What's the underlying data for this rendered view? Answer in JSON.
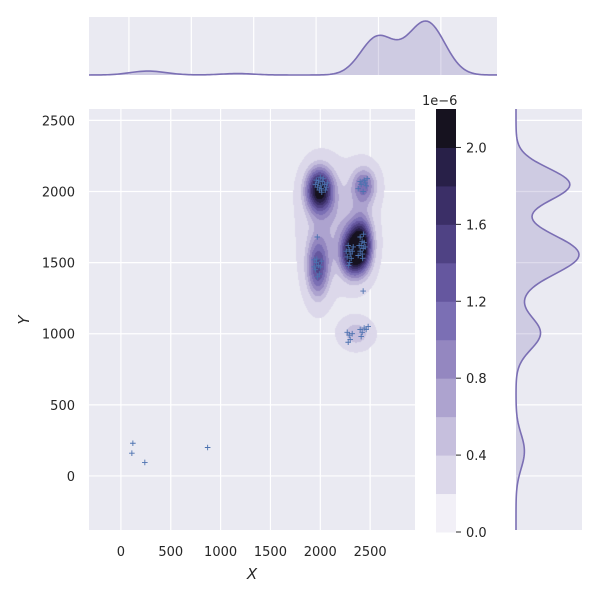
{
  "chart_data": {
    "type": "scatter",
    "title": "",
    "xlabel": "X",
    "ylabel": "Y",
    "xlim": [
      -320,
      2950
    ],
    "ylim": [
      -380,
      2580
    ],
    "x_ticks": [
      0,
      500,
      1000,
      1500,
      2000,
      2500
    ],
    "y_ticks": [
      0,
      500,
      1000,
      1500,
      2000,
      2500
    ],
    "grid": true,
    "overlay": "kde-contour-filled",
    "marker": "+",
    "colors": {
      "background": "#eaeaf2",
      "grid": "#ffffff",
      "accent": "#7b6fb4",
      "marker": "#4c72b0"
    },
    "colorbar": {
      "exponent_label": "1e−6",
      "tick_labels": [
        "0.0",
        "0.4",
        "0.8",
        "1.2",
        "1.6",
        "2.0"
      ],
      "tick_values": [
        0.0,
        0.4,
        0.8,
        1.2,
        1.6,
        2.0
      ],
      "max": 2.2,
      "levels": 11
    },
    "kde_clusters": [
      {
        "x": 1990,
        "y": 2010,
        "sx": 95,
        "sy": 110,
        "w": 1.9
      },
      {
        "x": 2410,
        "y": 1620,
        "sx": 80,
        "sy": 130,
        "w": 2.0
      },
      {
        "x": 2300,
        "y": 1560,
        "sx": 75,
        "sy": 110,
        "w": 1.3
      },
      {
        "x": 1975,
        "y": 1460,
        "sx": 80,
        "sy": 150,
        "w": 1.2
      },
      {
        "x": 2440,
        "y": 2040,
        "sx": 90,
        "sy": 95,
        "w": 0.95
      },
      {
        "x": 2360,
        "y": 1000,
        "sx": 110,
        "sy": 70,
        "w": 0.55
      },
      {
        "x": 2150,
        "y": 1760,
        "sx": 220,
        "sy": 260,
        "w": 0.45
      }
    ],
    "points": [
      {
        "x": 120,
        "y": 230
      },
      {
        "x": 110,
        "y": 160
      },
      {
        "x": 240,
        "y": 95
      },
      {
        "x": 870,
        "y": 200
      },
      {
        "x": 1960,
        "y": 2080
      },
      {
        "x": 1980,
        "y": 2060
      },
      {
        "x": 2000,
        "y": 2040
      },
      {
        "x": 2020,
        "y": 2070
      },
      {
        "x": 1990,
        "y": 2010
      },
      {
        "x": 2010,
        "y": 2020
      },
      {
        "x": 1970,
        "y": 2030
      },
      {
        "x": 2040,
        "y": 2050
      },
      {
        "x": 2030,
        "y": 2090
      },
      {
        "x": 2060,
        "y": 2030
      },
      {
        "x": 1950,
        "y": 2050
      },
      {
        "x": 2000,
        "y": 2100
      },
      {
        "x": 2050,
        "y": 2010
      },
      {
        "x": 2015,
        "y": 1995
      },
      {
        "x": 1985,
        "y": 2075
      },
      {
        "x": 2070,
        "y": 2060
      },
      {
        "x": 2380,
        "y": 2020
      },
      {
        "x": 2410,
        "y": 2050
      },
      {
        "x": 2440,
        "y": 2080
      },
      {
        "x": 2460,
        "y": 2040
      },
      {
        "x": 2430,
        "y": 2000
      },
      {
        "x": 2400,
        "y": 2070
      },
      {
        "x": 2470,
        "y": 2090
      },
      {
        "x": 2450,
        "y": 2060
      },
      {
        "x": 1970,
        "y": 1680
      },
      {
        "x": 1940,
        "y": 1520
      },
      {
        "x": 1960,
        "y": 1500
      },
      {
        "x": 1980,
        "y": 1480
      },
      {
        "x": 1950,
        "y": 1450
      },
      {
        "x": 2000,
        "y": 1470
      },
      {
        "x": 1990,
        "y": 1420
      },
      {
        "x": 1970,
        "y": 1400
      },
      {
        "x": 2010,
        "y": 1510
      },
      {
        "x": 1940,
        "y": 1470
      },
      {
        "x": 1965,
        "y": 1525
      },
      {
        "x": 2280,
        "y": 1620
      },
      {
        "x": 2290,
        "y": 1590
      },
      {
        "x": 2300,
        "y": 1560
      },
      {
        "x": 2310,
        "y": 1530
      },
      {
        "x": 2270,
        "y": 1540
      },
      {
        "x": 2320,
        "y": 1580
      },
      {
        "x": 2295,
        "y": 1500
      },
      {
        "x": 2260,
        "y": 1580
      },
      {
        "x": 2330,
        "y": 1610
      },
      {
        "x": 2285,
        "y": 1480
      },
      {
        "x": 2400,
        "y": 1680
      },
      {
        "x": 2420,
        "y": 1650
      },
      {
        "x": 2410,
        "y": 1620
      },
      {
        "x": 2430,
        "y": 1600
      },
      {
        "x": 2440,
        "y": 1640
      },
      {
        "x": 2400,
        "y": 1580
      },
      {
        "x": 2420,
        "y": 1560
      },
      {
        "x": 2450,
        "y": 1610
      },
      {
        "x": 2390,
        "y": 1620
      },
      {
        "x": 2435,
        "y": 1700
      },
      {
        "x": 2380,
        "y": 1550
      },
      {
        "x": 2425,
        "y": 1530
      },
      {
        "x": 2430,
        "y": 1300
      },
      {
        "x": 2270,
        "y": 1010
      },
      {
        "x": 2290,
        "y": 990
      },
      {
        "x": 2300,
        "y": 960
      },
      {
        "x": 2320,
        "y": 1000
      },
      {
        "x": 2280,
        "y": 940
      },
      {
        "x": 2400,
        "y": 1030
      },
      {
        "x": 2420,
        "y": 1010
      },
      {
        "x": 2440,
        "y": 1040
      },
      {
        "x": 2460,
        "y": 1030
      },
      {
        "x": 2410,
        "y": 980
      },
      {
        "x": 2480,
        "y": 1050
      }
    ]
  }
}
